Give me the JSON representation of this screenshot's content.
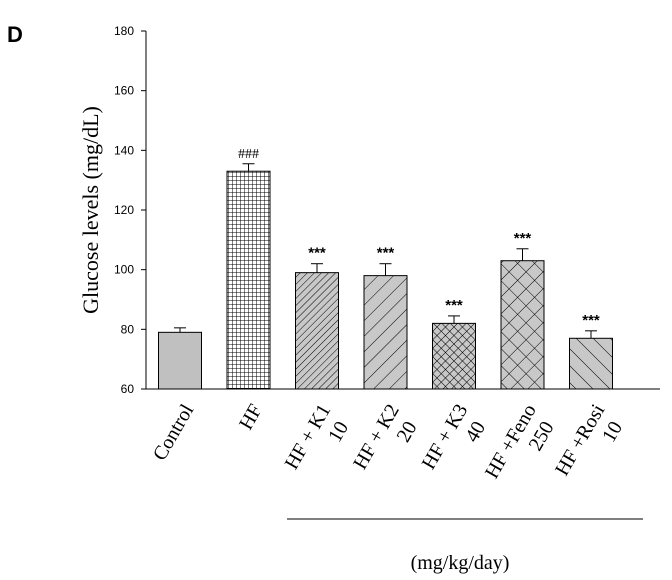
{
  "panel_label": "D",
  "unit_note": "(mg/kg/day)",
  "chart_data": {
    "type": "bar",
    "title": "",
    "xlabel": "",
    "ylabel": "Glucose levels (mg/dL)",
    "ylim": [
      60,
      180
    ],
    "yticks": [
      60,
      80,
      100,
      120,
      140,
      160,
      180
    ],
    "grid": false,
    "categories": [
      {
        "line1": "Control",
        "line2": ""
      },
      {
        "line1": "HF",
        "line2": ""
      },
      {
        "line1": "HF + K1",
        "line2": "10"
      },
      {
        "line1": "HF + K2",
        "line2": "20"
      },
      {
        "line1": "HF + K3",
        "line2": "40"
      },
      {
        "line1": "HF +Feno",
        "line2": "250"
      },
      {
        "line1": "HF +Rosi",
        "line2": "10"
      }
    ],
    "values": [
      79,
      133,
      99,
      98,
      82,
      103,
      77
    ],
    "errors": [
      1.5,
      2.5,
      3,
      4,
      2.5,
      4,
      2.5
    ],
    "annotations": [
      "",
      "###",
      "***",
      "***",
      "***",
      "***",
      "***"
    ],
    "patterns": [
      "solid-gray",
      "grid",
      "dense-diagonal",
      "sparse-diagonal",
      "crosshatch",
      "large-crosshatch",
      "back-diagonal"
    ]
  }
}
